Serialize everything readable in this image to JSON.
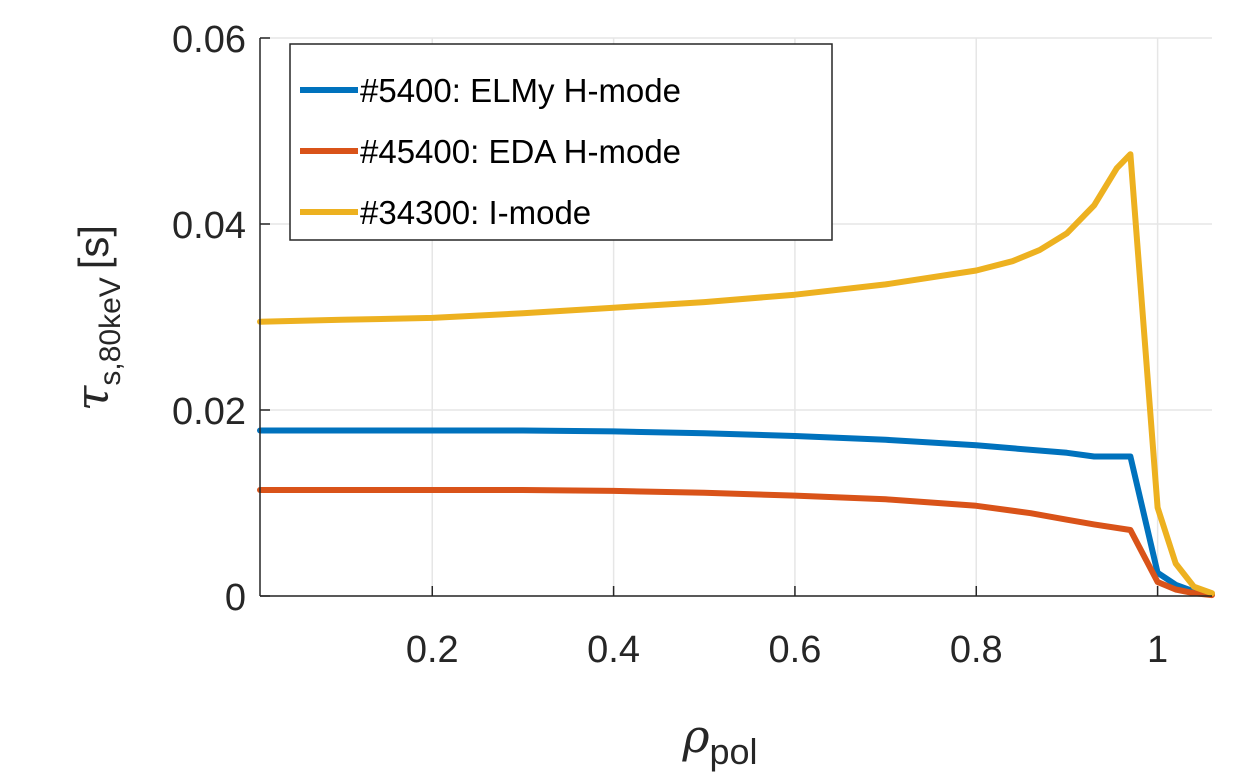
{
  "chart_data": {
    "type": "line",
    "title": "",
    "xlabel": {
      "main": "ρ",
      "sub": "pol"
    },
    "ylabel": {
      "main": "τ",
      "sub": "s,80keV",
      "unit": "[s]"
    },
    "xlim": [
      0.01,
      1.06
    ],
    "ylim": [
      0,
      0.06
    ],
    "xticks": [
      {
        "v": 0.2,
        "label": "0.2"
      },
      {
        "v": 0.4,
        "label": "0.4"
      },
      {
        "v": 0.6,
        "label": "0.6"
      },
      {
        "v": 0.8,
        "label": "0.8"
      },
      {
        "v": 1.0,
        "label": "1"
      }
    ],
    "yticks": [
      {
        "v": 0,
        "label": "0"
      },
      {
        "v": 0.02,
        "label": "0.02"
      },
      {
        "v": 0.04,
        "label": "0.04"
      },
      {
        "v": 0.06,
        "label": "0.06"
      }
    ],
    "grid": true,
    "legend_position": "top-left",
    "series": [
      {
        "name": "#5400: ELMy H-mode",
        "color": "#0072BD",
        "x": [
          0.01,
          0.1,
          0.2,
          0.3,
          0.4,
          0.5,
          0.6,
          0.7,
          0.8,
          0.9,
          0.93,
          0.97,
          1.0,
          1.02,
          1.04,
          1.06
        ],
        "y": [
          0.0178,
          0.0178,
          0.0178,
          0.0178,
          0.0177,
          0.0175,
          0.0172,
          0.0168,
          0.0162,
          0.0154,
          0.015,
          0.015,
          0.0025,
          0.0012,
          0.0005,
          0.0002
        ]
      },
      {
        "name": "#45400: EDA H-mode",
        "color": "#D95319",
        "x": [
          0.01,
          0.1,
          0.2,
          0.3,
          0.4,
          0.5,
          0.6,
          0.7,
          0.8,
          0.86,
          0.9,
          0.93,
          0.97,
          1.0,
          1.02,
          1.04,
          1.06
        ],
        "y": [
          0.0114,
          0.0114,
          0.0114,
          0.0114,
          0.0113,
          0.0111,
          0.0108,
          0.0104,
          0.0097,
          0.0089,
          0.0082,
          0.0077,
          0.0071,
          0.0015,
          0.0007,
          0.0003,
          0.0001
        ]
      },
      {
        "name": "#34300: I-mode",
        "color": "#EDB120",
        "x": [
          0.01,
          0.1,
          0.2,
          0.3,
          0.4,
          0.5,
          0.6,
          0.7,
          0.8,
          0.84,
          0.87,
          0.9,
          0.93,
          0.955,
          0.97,
          1.0,
          1.02,
          1.04,
          1.06
        ],
        "y": [
          0.0295,
          0.0297,
          0.0299,
          0.0304,
          0.031,
          0.0316,
          0.0324,
          0.0335,
          0.035,
          0.036,
          0.0372,
          0.039,
          0.042,
          0.046,
          0.0475,
          0.0095,
          0.0035,
          0.001,
          0.0003
        ]
      }
    ]
  }
}
